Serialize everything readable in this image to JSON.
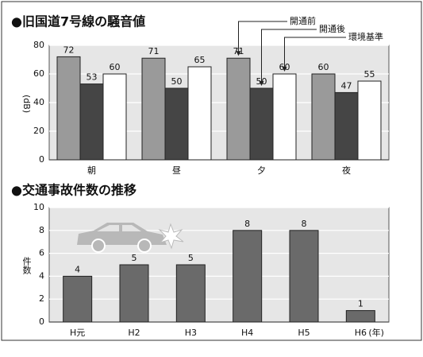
{
  "chart_data": [
    {
      "type": "grouped-bar",
      "title": "●旧国道7号線の騒音値",
      "y_label": "(dB)",
      "categories": [
        "朝",
        "昼",
        "夕",
        "夜"
      ],
      "series": [
        {
          "name": "開通前",
          "color": "#9a9a9a",
          "values": [
            72,
            71,
            71,
            60
          ]
        },
        {
          "name": "開通後",
          "color": "#454545",
          "values": [
            53,
            50,
            50,
            47
          ]
        },
        {
          "name": "環境基準",
          "color": "#ffffff",
          "values": [
            60,
            65,
            60,
            55
          ]
        }
      ],
      "ylim": [
        0,
        80
      ],
      "yticks": [
        0,
        20,
        40,
        60,
        80
      ],
      "grid": true
    },
    {
      "type": "bar",
      "title": "●交通事故件数の推移",
      "y_label": "件数",
      "x_label": "(年)",
      "categories": [
        "H元",
        "H2",
        "H3",
        "H4",
        "H5",
        "H6"
      ],
      "values": [
        4,
        5,
        5,
        8,
        8,
        1
      ],
      "color": "#6a6a6a",
      "ylim": [
        0,
        10
      ],
      "yticks": [
        0,
        2,
        4,
        6,
        8,
        10
      ],
      "grid": true
    }
  ]
}
